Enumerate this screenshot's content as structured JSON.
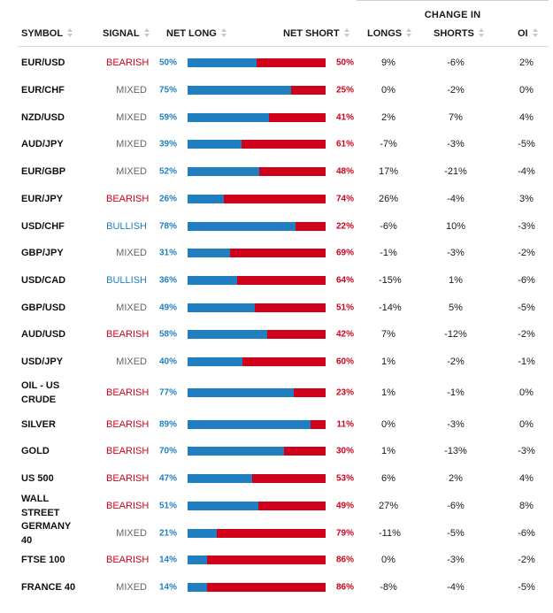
{
  "group_header": "CHANGE IN",
  "headers": {
    "symbol": "SYMBOL",
    "signal": "SIGNAL",
    "net_long": "NET LONG",
    "net_short": "NET SHORT",
    "longs": "LONGS",
    "shorts": "SHORTS",
    "oi": "OI"
  },
  "colors": {
    "long": "#1f7fc0",
    "short": "#d0021b",
    "mixed": "#666666"
  },
  "rows": [
    {
      "symbol": "EUR/USD",
      "signal": "BEARISH",
      "signal_type": "bearish",
      "net_long": "50%",
      "net_long_value": 50,
      "net_short": "50%",
      "longs": "9%",
      "shorts": "-6%",
      "oi": "2%"
    },
    {
      "symbol": "EUR/CHF",
      "signal": "MIXED",
      "signal_type": "mixed",
      "net_long": "75%",
      "net_long_value": 75,
      "net_short": "25%",
      "longs": "0%",
      "shorts": "-2%",
      "oi": "0%"
    },
    {
      "symbol": "NZD/USD",
      "signal": "MIXED",
      "signal_type": "mixed",
      "net_long": "59%",
      "net_long_value": 59,
      "net_short": "41%",
      "longs": "2%",
      "shorts": "7%",
      "oi": "4%"
    },
    {
      "symbol": "AUD/JPY",
      "signal": "MIXED",
      "signal_type": "mixed",
      "net_long": "39%",
      "net_long_value": 39,
      "net_short": "61%",
      "longs": "-7%",
      "shorts": "-3%",
      "oi": "-5%"
    },
    {
      "symbol": "EUR/GBP",
      "signal": "MIXED",
      "signal_type": "mixed",
      "net_long": "52%",
      "net_long_value": 52,
      "net_short": "48%",
      "longs": "17%",
      "shorts": "-21%",
      "oi": "-4%"
    },
    {
      "symbol": "EUR/JPY",
      "signal": "BEARISH",
      "signal_type": "bearish",
      "net_long": "26%",
      "net_long_value": 26,
      "net_short": "74%",
      "longs": "26%",
      "shorts": "-4%",
      "oi": "3%"
    },
    {
      "symbol": "USD/CHF",
      "signal": "BULLISH",
      "signal_type": "bullish",
      "net_long": "78%",
      "net_long_value": 78,
      "net_short": "22%",
      "longs": "-6%",
      "shorts": "10%",
      "oi": "-3%"
    },
    {
      "symbol": "GBP/JPY",
      "signal": "MIXED",
      "signal_type": "mixed",
      "net_long": "31%",
      "net_long_value": 31,
      "net_short": "69%",
      "longs": "-1%",
      "shorts": "-3%",
      "oi": "-2%"
    },
    {
      "symbol": "USD/CAD",
      "signal": "BULLISH",
      "signal_type": "bullish",
      "net_long": "36%",
      "net_long_value": 36,
      "net_short": "64%",
      "longs": "-15%",
      "shorts": "1%",
      "oi": "-6%"
    },
    {
      "symbol": "GBP/USD",
      "signal": "MIXED",
      "signal_type": "mixed",
      "net_long": "49%",
      "net_long_value": 49,
      "net_short": "51%",
      "longs": "-14%",
      "shorts": "5%",
      "oi": "-5%"
    },
    {
      "symbol": "AUD/USD",
      "signal": "BEARISH",
      "signal_type": "bearish",
      "net_long": "58%",
      "net_long_value": 58,
      "net_short": "42%",
      "longs": "7%",
      "shorts": "-12%",
      "oi": "-2%"
    },
    {
      "symbol": "USD/JPY",
      "signal": "MIXED",
      "signal_type": "mixed",
      "net_long": "40%",
      "net_long_value": 40,
      "net_short": "60%",
      "longs": "1%",
      "shorts": "-2%",
      "oi": "-1%"
    },
    {
      "symbol": "OIL - US CRUDE",
      "signal": "BEARISH",
      "signal_type": "bearish",
      "net_long": "77%",
      "net_long_value": 77,
      "net_short": "23%",
      "longs": "1%",
      "shorts": "-1%",
      "oi": "0%"
    },
    {
      "symbol": "SILVER",
      "signal": "BEARISH",
      "signal_type": "bearish",
      "net_long": "89%",
      "net_long_value": 89,
      "net_short": "11%",
      "longs": "0%",
      "shorts": "-3%",
      "oi": "0%"
    },
    {
      "symbol": "GOLD",
      "signal": "BEARISH",
      "signal_type": "bearish",
      "net_long": "70%",
      "net_long_value": 70,
      "net_short": "30%",
      "longs": "1%",
      "shorts": "-13%",
      "oi": "-3%"
    },
    {
      "symbol": "US 500",
      "signal": "BEARISH",
      "signal_type": "bearish",
      "net_long": "47%",
      "net_long_value": 47,
      "net_short": "53%",
      "longs": "6%",
      "shorts": "2%",
      "oi": "4%"
    },
    {
      "symbol": "WALL STREET",
      "signal": "BEARISH",
      "signal_type": "bearish",
      "net_long": "51%",
      "net_long_value": 51,
      "net_short": "49%",
      "longs": "27%",
      "shorts": "-6%",
      "oi": "8%"
    },
    {
      "symbol": "GERMANY 40",
      "signal": "MIXED",
      "signal_type": "mixed",
      "net_long": "21%",
      "net_long_value": 21,
      "net_short": "79%",
      "longs": "-11%",
      "shorts": "-5%",
      "oi": "-6%"
    },
    {
      "symbol": "FTSE 100",
      "signal": "BEARISH",
      "signal_type": "bearish",
      "net_long": "14%",
      "net_long_value": 14,
      "net_short": "86%",
      "longs": "0%",
      "shorts": "-3%",
      "oi": "-2%"
    },
    {
      "symbol": "FRANCE 40",
      "signal": "MIXED",
      "signal_type": "mixed",
      "net_long": "14%",
      "net_long_value": 14,
      "net_short": "86%",
      "longs": "-8%",
      "shorts": "-4%",
      "oi": "-5%"
    }
  ]
}
